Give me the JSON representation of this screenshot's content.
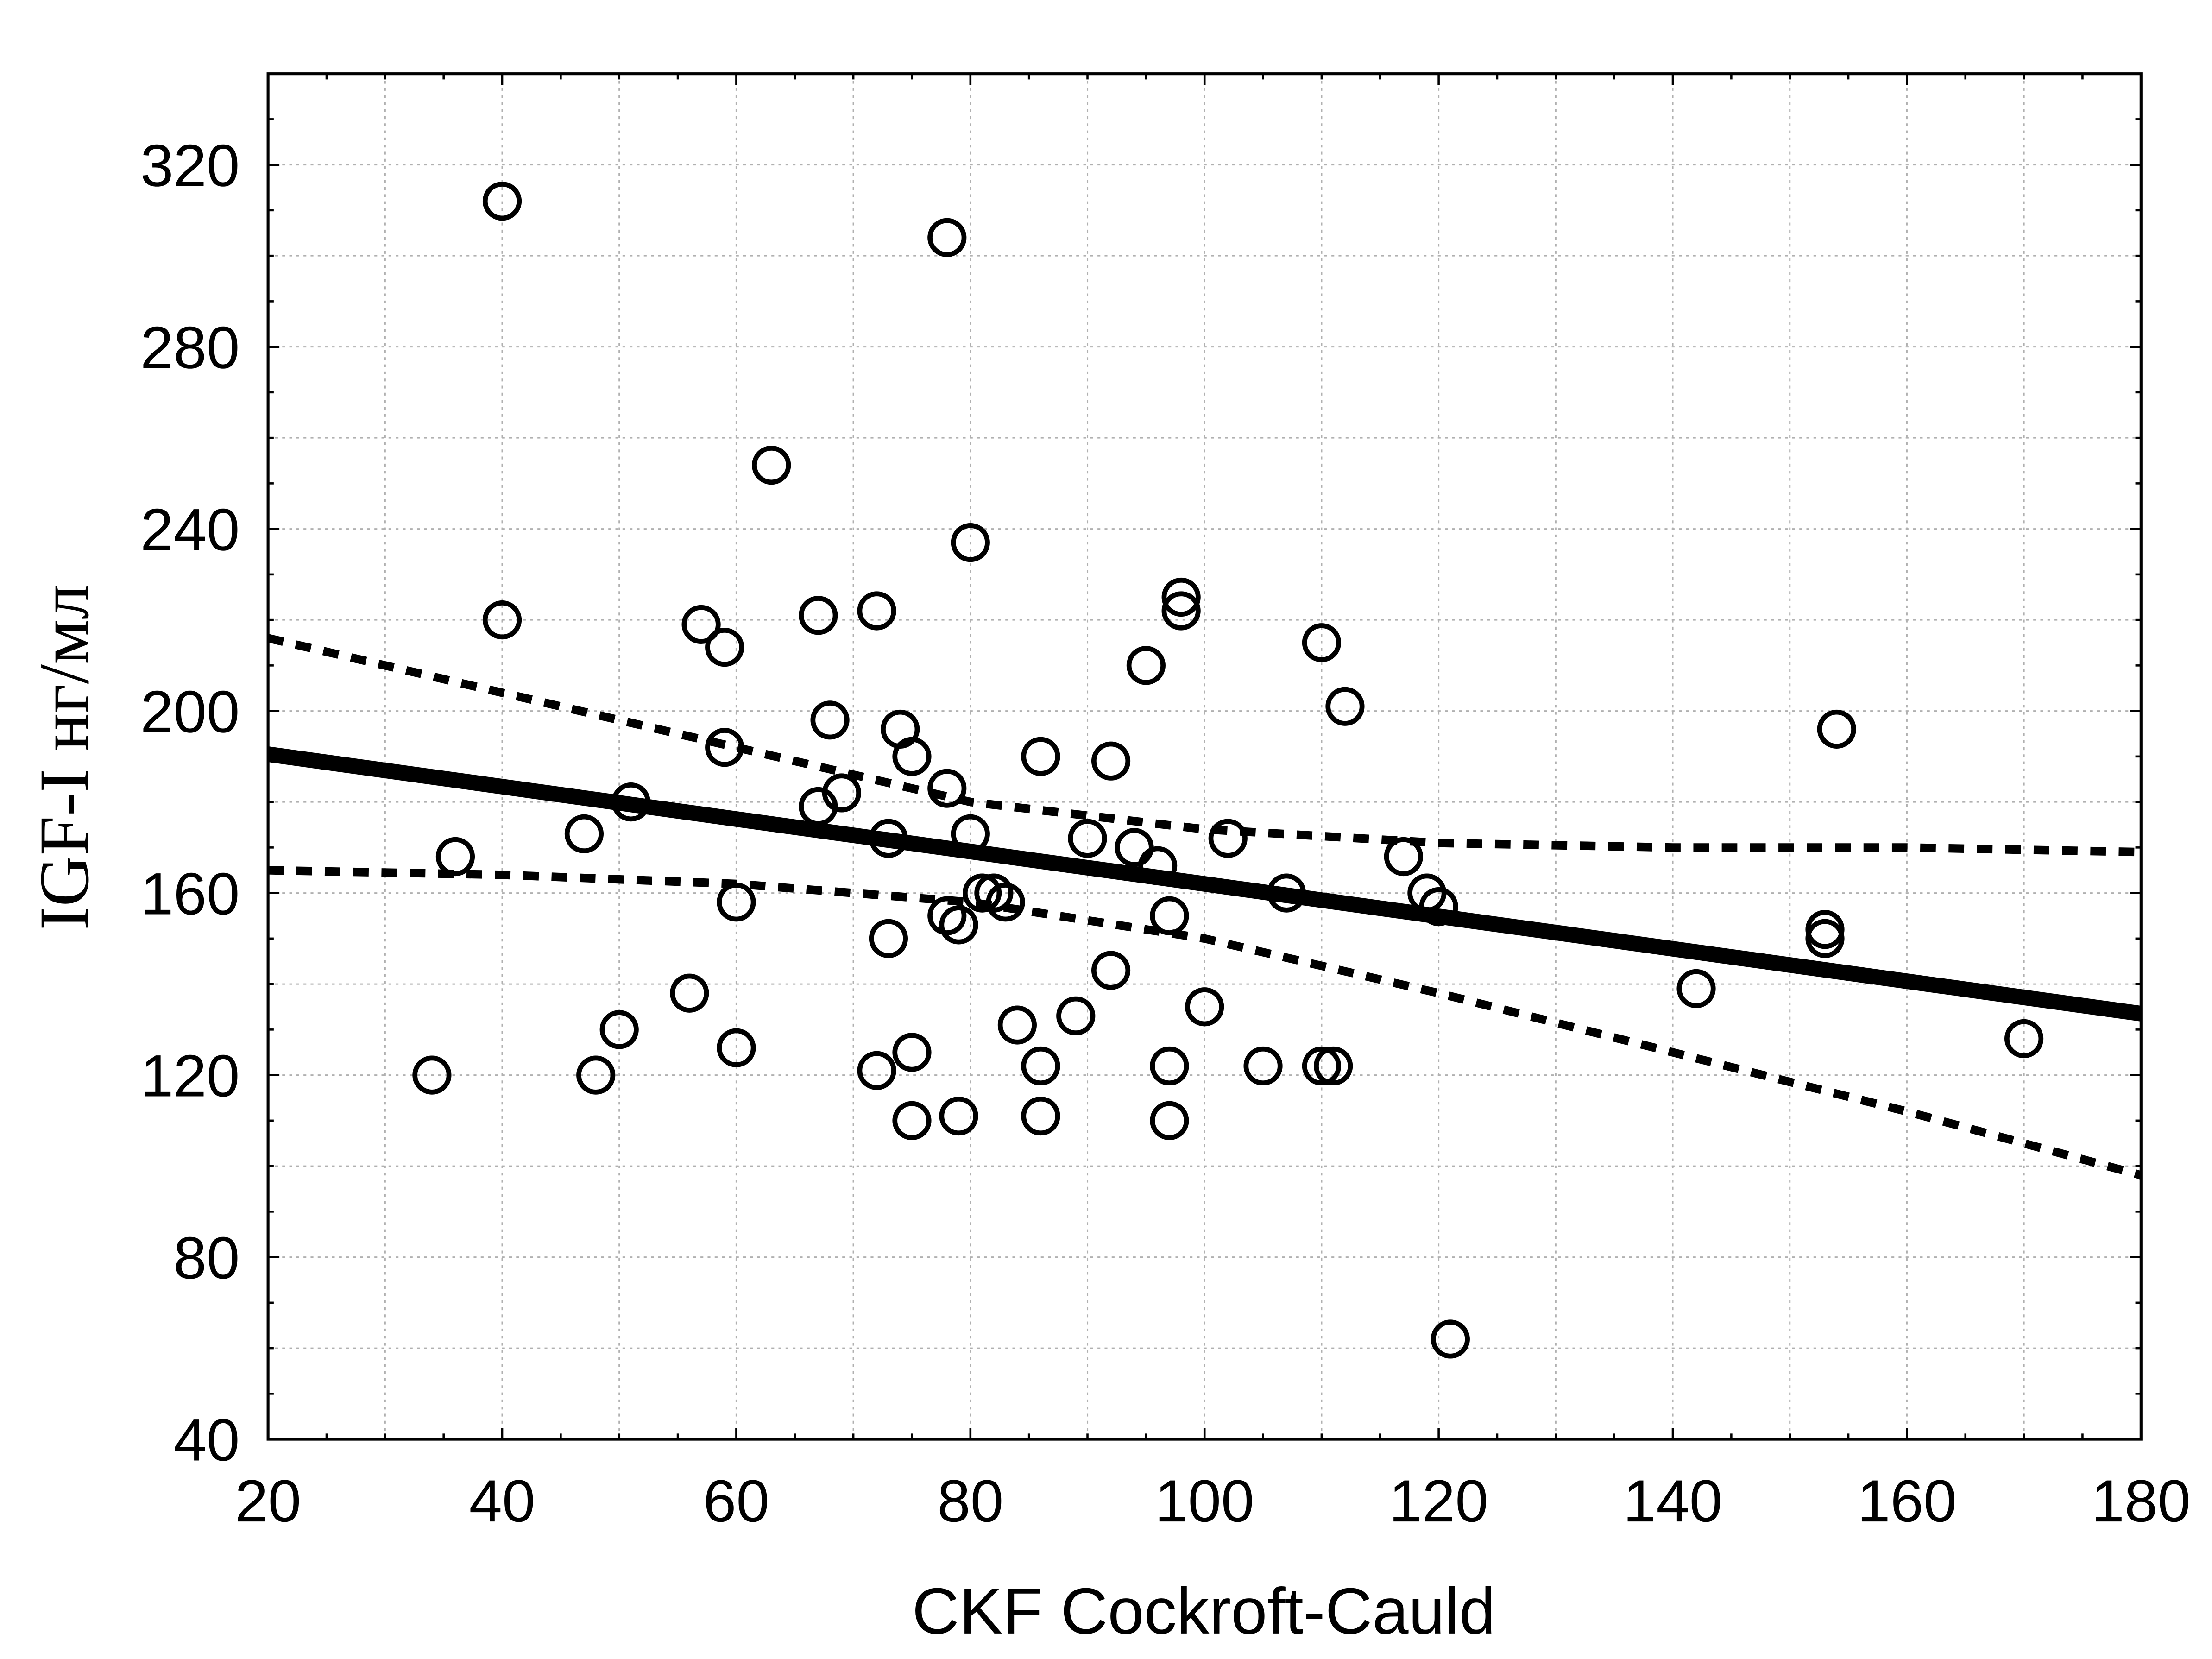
{
  "chart_data": {
    "type": "scatter",
    "title": "",
    "xlabel": "CKF Cockroft-Cauld",
    "ylabel": "IGF-I нг/мл",
    "xlim": [
      20,
      180
    ],
    "ylim": [
      40,
      340
    ],
    "xticks": [
      20,
      40,
      60,
      80,
      100,
      120,
      140,
      160,
      180
    ],
    "yticks": [
      40,
      80,
      120,
      160,
      200,
      240,
      280,
      320
    ],
    "grid": true,
    "points": [
      [
        40,
        312
      ],
      [
        78,
        304
      ],
      [
        63,
        254
      ],
      [
        80,
        237
      ],
      [
        40,
        220
      ],
      [
        57,
        219
      ],
      [
        59,
        214
      ],
      [
        67,
        221
      ],
      [
        72,
        222
      ],
      [
        98,
        225
      ],
      [
        98,
        222
      ],
      [
        110,
        215
      ],
      [
        95,
        210
      ],
      [
        112,
        201
      ],
      [
        154,
        196
      ],
      [
        68,
        198
      ],
      [
        59,
        192
      ],
      [
        74,
        196
      ],
      [
        75,
        190
      ],
      [
        86,
        190
      ],
      [
        92,
        189
      ],
      [
        69,
        182
      ],
      [
        78,
        183
      ],
      [
        51,
        180
      ],
      [
        67,
        179
      ],
      [
        47,
        173
      ],
      [
        73,
        172
      ],
      [
        80,
        173
      ],
      [
        90,
        172
      ],
      [
        94,
        170
      ],
      [
        96,
        166
      ],
      [
        102,
        172
      ],
      [
        36,
        168
      ],
      [
        117,
        168
      ],
      [
        60,
        158
      ],
      [
        81,
        160
      ],
      [
        82,
        160
      ],
      [
        83,
        158
      ],
      [
        107,
        160
      ],
      [
        119,
        160
      ],
      [
        120,
        157
      ],
      [
        78,
        155
      ],
      [
        79,
        153
      ],
      [
        97,
        155
      ],
      [
        73,
        150
      ],
      [
        153,
        152
      ],
      [
        153,
        150
      ],
      [
        56,
        138
      ],
      [
        92,
        143
      ],
      [
        142,
        139
      ],
      [
        100,
        135
      ],
      [
        89,
        133
      ],
      [
        50,
        130
      ],
      [
        84,
        131
      ],
      [
        170,
        128
      ],
      [
        60,
        126
      ],
      [
        75,
        125
      ],
      [
        34,
        120
      ],
      [
        48,
        120
      ],
      [
        72,
        121
      ],
      [
        86,
        122
      ],
      [
        97,
        122
      ],
      [
        105,
        122
      ],
      [
        110,
        122
      ],
      [
        111,
        122
      ],
      [
        75,
        110
      ],
      [
        79,
        111
      ],
      [
        86,
        111
      ],
      [
        97,
        110
      ],
      [
        121,
        62
      ]
    ],
    "regression": {
      "x": [
        20,
        180
      ],
      "y": [
        190.5,
        133.5
      ]
    },
    "ci_upper": [
      [
        20,
        216
      ],
      [
        40,
        204
      ],
      [
        60,
        192
      ],
      [
        80,
        180
      ],
      [
        100,
        174
      ],
      [
        120,
        171
      ],
      [
        140,
        170
      ],
      [
        160,
        170
      ],
      [
        180,
        169
      ]
    ],
    "ci_lower": [
      [
        20,
        165
      ],
      [
        40,
        164
      ],
      [
        60,
        162
      ],
      [
        80,
        158
      ],
      [
        100,
        150
      ],
      [
        120,
        138
      ],
      [
        140,
        125
      ],
      [
        160,
        112
      ],
      [
        180,
        98
      ]
    ],
    "colors": {
      "marker": "#000000",
      "line": "#000000",
      "grid": "#b0b0b0"
    }
  }
}
